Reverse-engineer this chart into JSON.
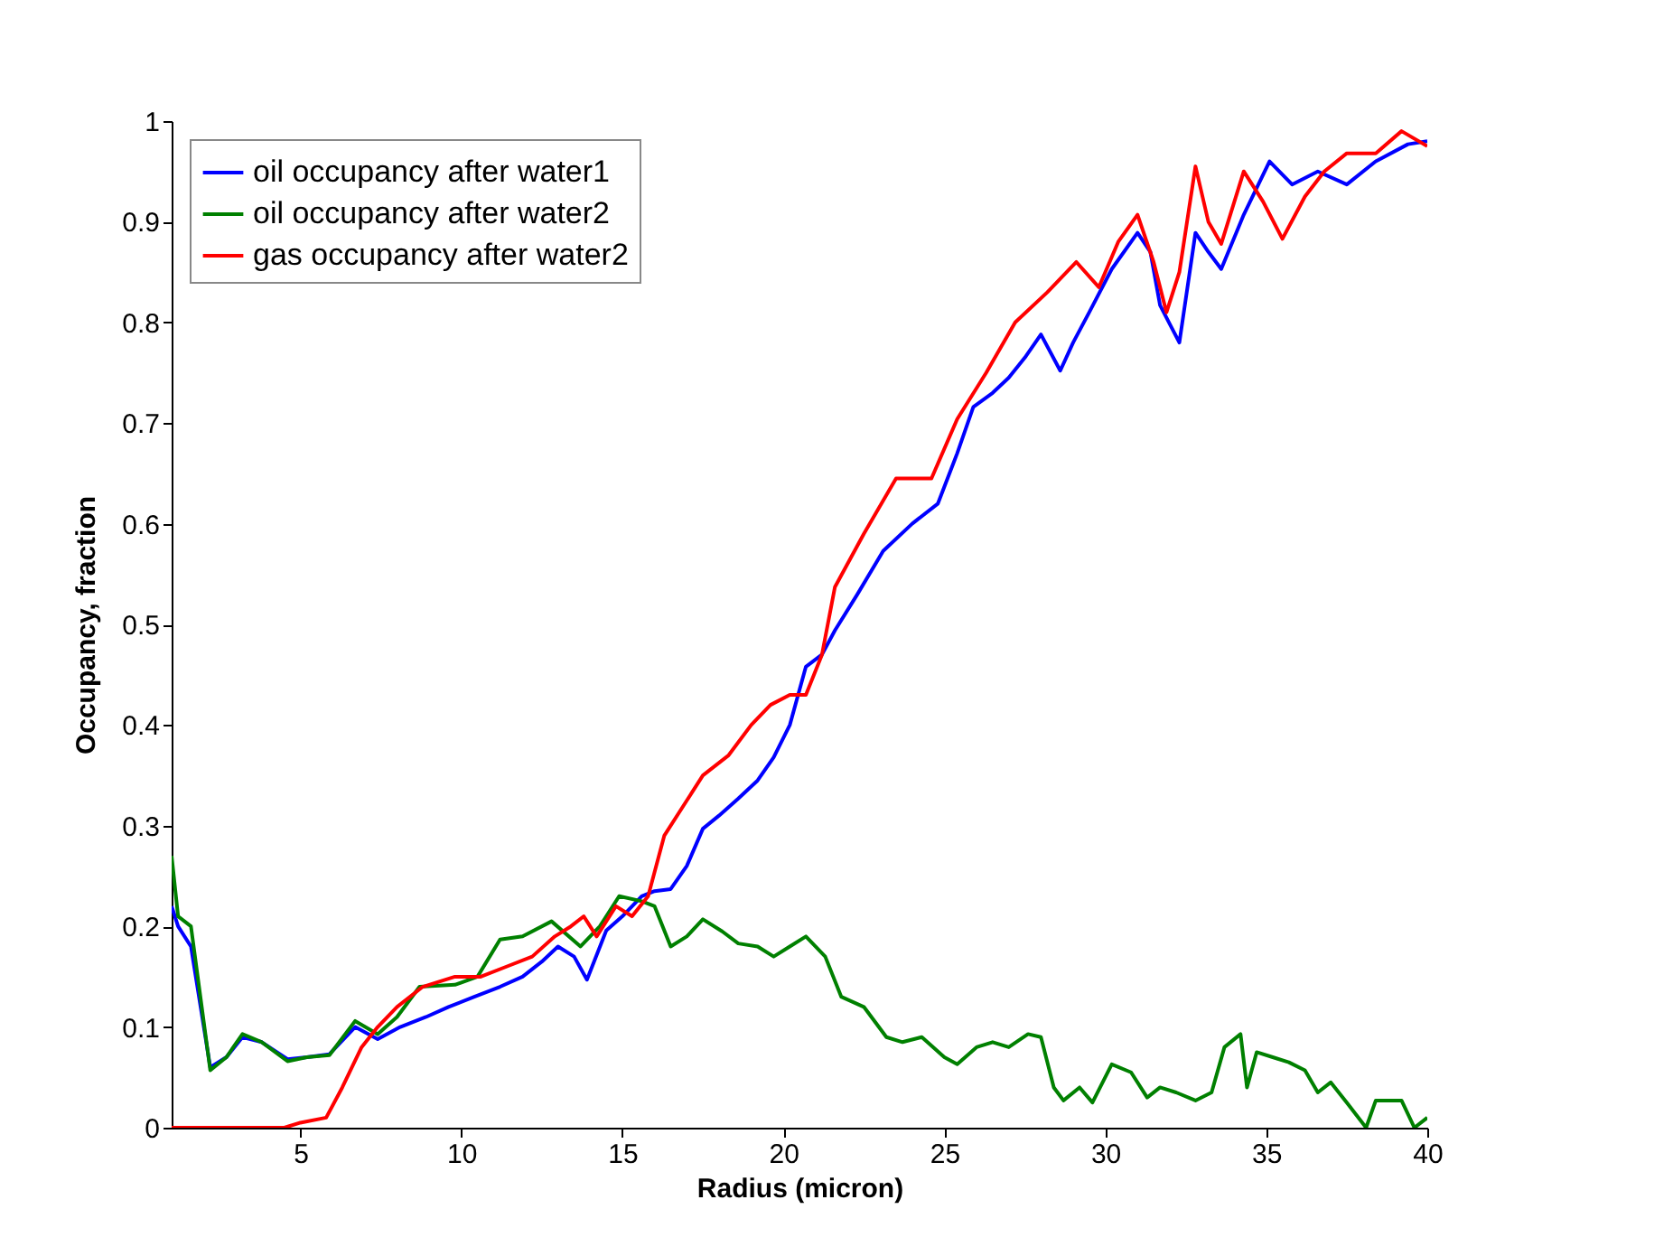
{
  "chart_data": {
    "type": "line",
    "xlabel": "Radius (micron)",
    "ylabel": "Occupancy, fraction",
    "xlim": [
      1,
      40
    ],
    "xticks": [
      5,
      10,
      15,
      20,
      25,
      30,
      35,
      40
    ],
    "ylim": [
      0,
      1
    ],
    "yticks": [
      0,
      0.1,
      0.2,
      0.3,
      0.4,
      0.5,
      0.6,
      0.7,
      0.8,
      0.9,
      1
    ],
    "grid": false,
    "legend": "top left",
    "marker": "none",
    "line_style": "solid",
    "series": [
      {
        "name": "oil occupancy after water1",
        "color": "#0000ff",
        "x": [
          1,
          1.2,
          1.6,
          2.2,
          2.7,
          3.2,
          3.8,
          4.6,
          5.2,
          5.9,
          6.7,
          7.4,
          8.1,
          8.9,
          9.6,
          10.4,
          11.2,
          11.9,
          12.5,
          13,
          13.5,
          13.9,
          14.5,
          15,
          15.6,
          16,
          16.5,
          17,
          17.5,
          18,
          18.6,
          19.2,
          19.7,
          20.2,
          20.7,
          21.2,
          21.6,
          22.3,
          23.1,
          24,
          24.8,
          25.4,
          25.9,
          26.5,
          27,
          27.5,
          28,
          28.6,
          29,
          29.5,
          30.2,
          31,
          31.4,
          31.7,
          32.3,
          32.8,
          33.2,
          33.6,
          34.3,
          35.1,
          35.8,
          36.6,
          37.5,
          38.4,
          39.4,
          40
        ],
        "values": [
          0.22,
          0.2,
          0.18,
          0.06,
          0.07,
          0.09,
          0.085,
          0.068,
          0.07,
          0.073,
          0.1,
          0.088,
          0.1,
          0.11,
          0.12,
          0.13,
          0.14,
          0.15,
          0.165,
          0.18,
          0.17,
          0.147,
          0.196,
          0.21,
          0.23,
          0.235,
          0.237,
          0.26,
          0.297,
          0.31,
          0.327,
          0.345,
          0.368,
          0.4,
          0.458,
          0.47,
          0.494,
          0.53,
          0.573,
          0.6,
          0.62,
          0.67,
          0.716,
          0.73,
          0.745,
          0.765,
          0.788,
          0.752,
          0.78,
          0.81,
          0.853,
          0.889,
          0.87,
          0.817,
          0.78,
          0.889,
          0.87,
          0.853,
          0.907,
          0.96,
          0.937,
          0.95,
          0.937,
          0.96,
          0.977,
          0.98
        ]
      },
      {
        "name": "oil occupancy after water2",
        "color": "#008000",
        "x": [
          1,
          1.2,
          1.6,
          2.2,
          2.7,
          3.2,
          3.8,
          4.6,
          5.2,
          5.9,
          6.7,
          7.4,
          8,
          8.7,
          9.8,
          10.5,
          11.2,
          11.9,
          12.8,
          13.7,
          14.3,
          14.9,
          15.6,
          16,
          16.5,
          17,
          17.5,
          18.1,
          18.6,
          19.2,
          19.7,
          20.2,
          20.7,
          21.3,
          21.8,
          22.5,
          23.2,
          23.7,
          24.3,
          25,
          25.4,
          26,
          26.5,
          27,
          27.6,
          28,
          28.4,
          28.7,
          29.2,
          29.6,
          30.2,
          30.8,
          31.3,
          31.7,
          32.2,
          32.8,
          33.3,
          33.7,
          34.2,
          34.4,
          34.7,
          35.2,
          35.7,
          36.2,
          36.6,
          37,
          37.5,
          38.1,
          38.4,
          39.2,
          39.6,
          40
        ],
        "values": [
          0.27,
          0.21,
          0.2,
          0.057,
          0.07,
          0.093,
          0.085,
          0.066,
          0.07,
          0.072,
          0.106,
          0.093,
          0.11,
          0.14,
          0.142,
          0.15,
          0.187,
          0.19,
          0.205,
          0.18,
          0.2,
          0.23,
          0.225,
          0.22,
          0.18,
          0.19,
          0.207,
          0.195,
          0.183,
          0.18,
          0.17,
          0.18,
          0.19,
          0.17,
          0.13,
          0.12,
          0.09,
          0.085,
          0.09,
          0.07,
          0.063,
          0.08,
          0.085,
          0.08,
          0.093,
          0.09,
          0.04,
          0.027,
          0.04,
          0.025,
          0.063,
          0.055,
          0.03,
          0.04,
          0.035,
          0.027,
          0.035,
          0.08,
          0.093,
          0.04,
          0.075,
          0.07,
          0.065,
          0.057,
          0.035,
          0.045,
          0.025,
          0,
          0.027,
          0.027,
          0,
          0.01
        ]
      },
      {
        "name": "gas occupancy after water2",
        "color": "#ff0000",
        "x": [
          1,
          3,
          4.5,
          5,
          5.8,
          6.3,
          6.9,
          7.4,
          8,
          8.8,
          9.8,
          10.6,
          11.4,
          12.2,
          12.9,
          13.4,
          13.8,
          14.2,
          14.8,
          15.3,
          15.8,
          16.3,
          16.9,
          17.5,
          18.3,
          19,
          19.6,
          20.2,
          20.7,
          21.2,
          21.6,
          22.5,
          23.5,
          24.6,
          25.4,
          26.3,
          27.2,
          28.2,
          29.1,
          29.8,
          30.4,
          31,
          31.5,
          31.9,
          32.3,
          32.8,
          33.2,
          33.6,
          34.3,
          34.9,
          35.5,
          36.2,
          36.8,
          37.5,
          38.4,
          39.2,
          40
        ],
        "values": [
          0,
          0,
          0,
          0.005,
          0.01,
          0.04,
          0.08,
          0.1,
          0.12,
          0.14,
          0.15,
          0.15,
          0.16,
          0.17,
          0.19,
          0.2,
          0.21,
          0.19,
          0.22,
          0.21,
          0.23,
          0.29,
          0.32,
          0.35,
          0.37,
          0.4,
          0.42,
          0.43,
          0.43,
          0.47,
          0.537,
          0.59,
          0.645,
          0.645,
          0.704,
          0.75,
          0.8,
          0.83,
          0.86,
          0.835,
          0.88,
          0.907,
          0.86,
          0.81,
          0.85,
          0.955,
          0.9,
          0.878,
          0.95,
          0.92,
          0.883,
          0.925,
          0.95,
          0.968,
          0.968,
          0.99,
          0.975
        ]
      }
    ]
  }
}
